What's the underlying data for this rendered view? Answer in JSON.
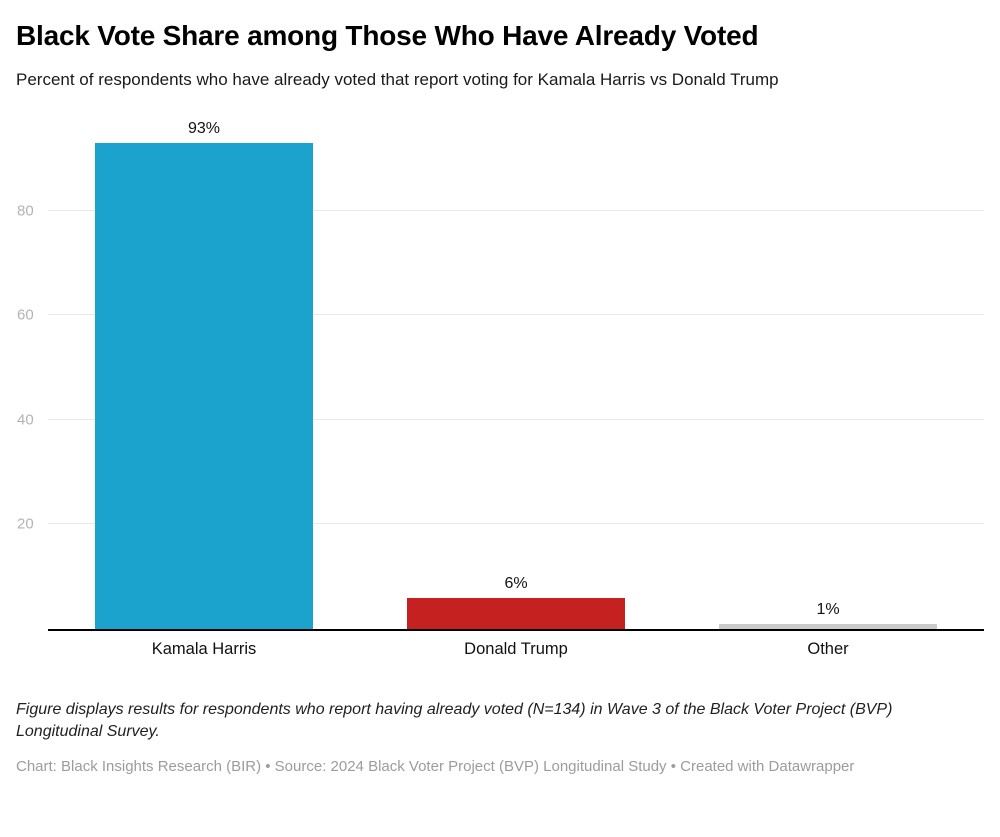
{
  "header": {
    "title": "Black Vote Share among Those Who Have Already Voted",
    "subtitle": "Percent of respondents who have already voted that report voting for Kamala Harris vs Donald Trump"
  },
  "chart_data": {
    "type": "bar",
    "title": "Black Vote Share among Those Who Have Already Voted",
    "subtitle": "Percent of respondents who have already voted that report voting for Kamala Harris vs Donald Trump",
    "categories": [
      "Kamala Harris",
      "Donald Trump",
      "Other"
    ],
    "values": [
      93,
      6,
      1
    ],
    "value_labels": [
      "93%",
      "6%",
      "1%"
    ],
    "bar_colors": [
      "#1BA3CE",
      "#C42120",
      "#CBCBCB"
    ],
    "xlabel": "",
    "ylabel": "",
    "ylim": [
      0,
      100
    ],
    "y_ticks": [
      20,
      40,
      60,
      80
    ],
    "grid": "horizontal",
    "legend": "none"
  },
  "footer": {
    "note": "Figure displays results for respondents who report having already voted (N=134) in Wave 3 of the Black Voter Project (BVP) Longitudinal Survey.",
    "credit": "Chart: Black Insights Research (BIR) • Source: 2024 Black Voter Project (BVP) Longitudinal Study • Created with Datawrapper"
  }
}
